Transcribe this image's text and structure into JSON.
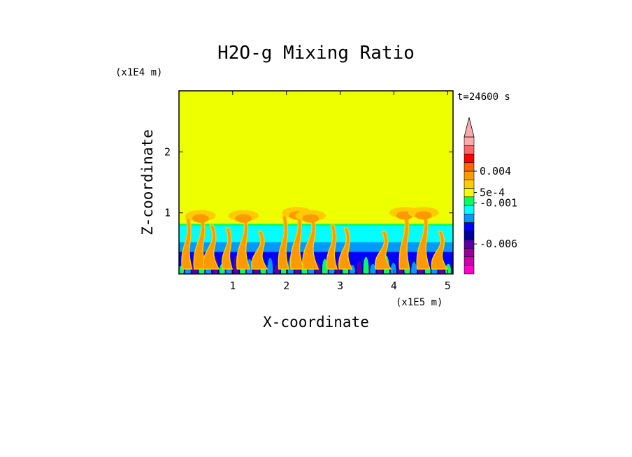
{
  "chart_data": {
    "type": "heatmap",
    "title": "H2O-g Mixing Ratio",
    "xlabel": "X-coordinate",
    "ylabel": "Z-coordinate",
    "x_unit": "(x1E5 m)",
    "y_unit": "(x1E4 m)",
    "time_label": "t=24600 s",
    "xlim": [
      0,
      5.1
    ],
    "ylim": [
      0,
      3.0
    ],
    "xticks": [
      1,
      2,
      3,
      4,
      5
    ],
    "yticks": [
      1,
      2
    ],
    "background_value": 0.0,
    "boundary_layer_top": 0.82,
    "plumes": [
      {
        "x": 0.15,
        "top": 0.95
      },
      {
        "x": 0.4,
        "top": 1.0
      },
      {
        "x": 0.6,
        "top": 0.8
      },
      {
        "x": 0.9,
        "top": 0.75
      },
      {
        "x": 1.2,
        "top": 1.0
      },
      {
        "x": 1.5,
        "top": 0.7
      },
      {
        "x": 1.95,
        "top": 0.95
      },
      {
        "x": 2.2,
        "top": 1.05
      },
      {
        "x": 2.45,
        "top": 1.0
      },
      {
        "x": 2.85,
        "top": 0.8
      },
      {
        "x": 3.1,
        "top": 0.75
      },
      {
        "x": 3.8,
        "top": 0.7
      },
      {
        "x": 4.2,
        "top": 1.05
      },
      {
        "x": 4.55,
        "top": 1.05
      },
      {
        "x": 4.85,
        "top": 0.7
      }
    ],
    "colorbar": {
      "colors": [
        "#ff00cc",
        "#cc00aa",
        "#990099",
        "#5500aa",
        "#000099",
        "#0000ff",
        "#0099ff",
        "#00ffff",
        "#00ff66",
        "#eeff00",
        "#ffcc00",
        "#ff9900",
        "#ff6600",
        "#ff0000",
        "#ff6666",
        "#ffaaaa"
      ],
      "labels": [
        "0.004",
        "5e-4",
        "-0.001",
        "-0.006"
      ],
      "label_levels": [
        0.004,
        0.0005,
        -0.001,
        -0.006
      ]
    }
  }
}
